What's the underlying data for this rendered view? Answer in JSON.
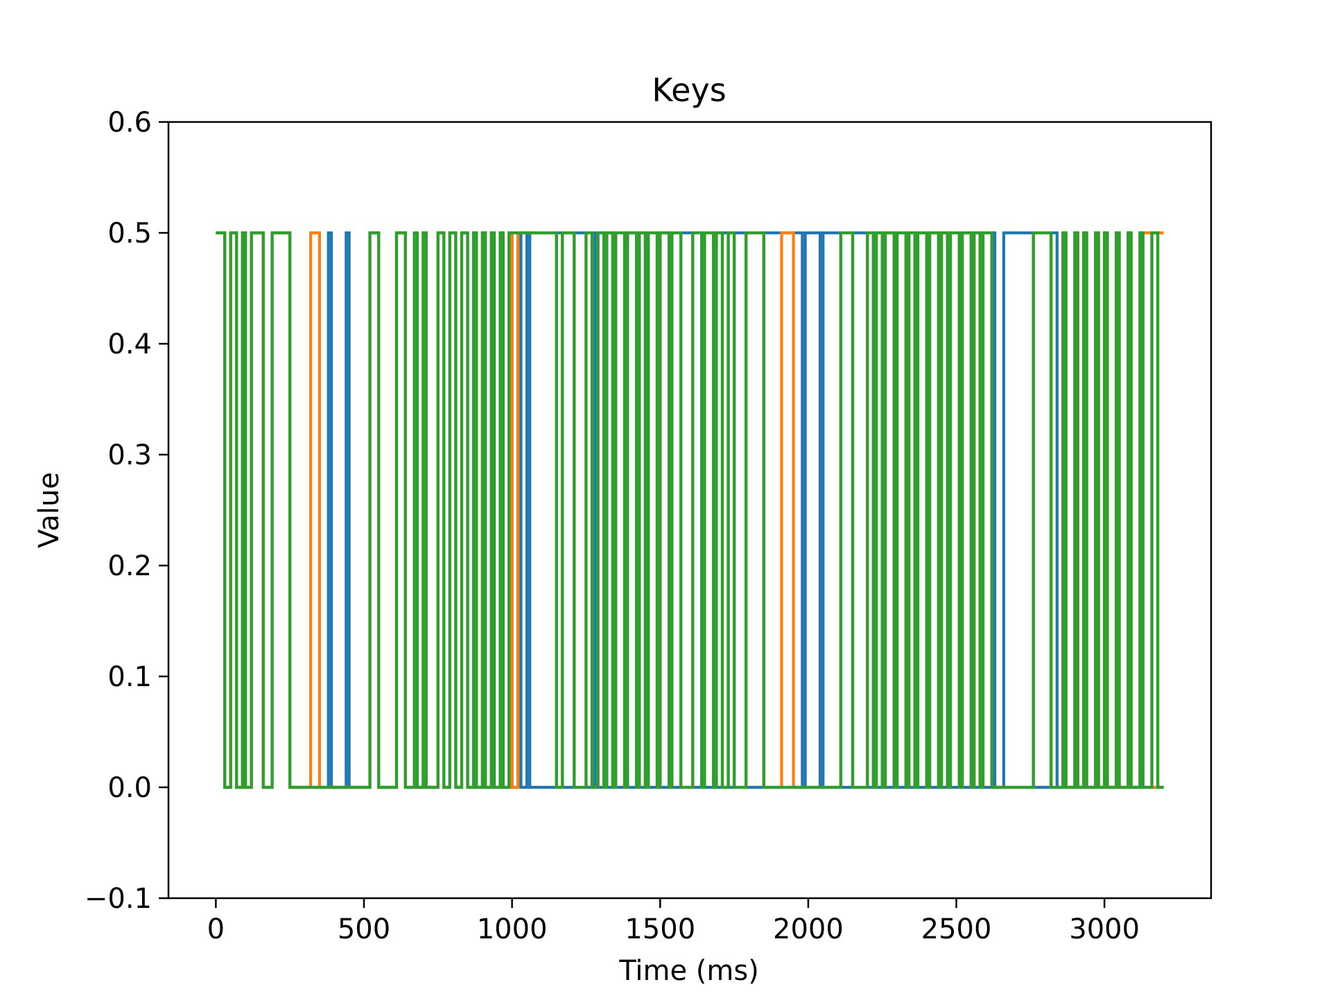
{
  "chart_data": {
    "type": "line",
    "title": "Keys",
    "xlabel": "Time (ms)",
    "ylabel": "Value",
    "xlim": [
      -160,
      3360
    ],
    "ylim": [
      -0.1,
      0.6
    ],
    "xticks": [
      0,
      500,
      1000,
      1500,
      2000,
      2500,
      3000
    ],
    "yticks": [
      -0.1,
      0.0,
      0.1,
      0.2,
      0.3,
      0.4,
      0.5,
      0.6
    ],
    "ytick_labels": [
      "−0.1",
      "0.0",
      "0.1",
      "0.2",
      "0.3",
      "0.4",
      "0.5",
      "0.6"
    ],
    "grid": false,
    "legend": "none",
    "series": [
      {
        "color": "#1f77b4",
        "step": "post",
        "high": 0.5,
        "low": 0.0,
        "x_start": 0,
        "x_end": 3200,
        "high_start": true,
        "transitions": [
          30,
          50,
          70,
          90,
          100,
          120,
          160,
          190,
          250,
          380,
          390,
          440,
          450,
          520,
          550,
          610,
          640,
          700,
          710,
          750,
          770,
          790,
          810,
          830,
          850,
          870,
          880,
          900,
          910,
          930,
          940,
          960,
          970,
          990,
          1000,
          1020,
          1030,
          1050,
          1060,
          1150,
          1170,
          1210,
          1250,
          1280,
          1290,
          1310,
          1320,
          1340,
          1350,
          1380,
          1390,
          1420,
          1430,
          1450,
          1460,
          1490,
          1500,
          1530,
          1540,
          1570,
          1610,
          1640,
          1650,
          1680,
          1690,
          1710,
          1730,
          1750,
          1790,
          1850,
          1980,
          1990,
          2040,
          2050,
          2110,
          2150,
          2200,
          2220,
          2230,
          2250,
          2260,
          2290,
          2300,
          2330,
          2340,
          2360,
          2370,
          2400,
          2410,
          2440,
          2450,
          2470,
          2480,
          2510,
          2520,
          2550,
          2560,
          2580,
          2590,
          2620,
          2630,
          2660,
          2760,
          2820,
          2840,
          2860,
          2870,
          2900,
          2910,
          2930,
          2940,
          2970,
          2980,
          3000,
          3010,
          3040,
          3050,
          3080,
          3090,
          3120,
          3130,
          3160,
          3180
        ]
      },
      {
        "color": "#ff7f0e",
        "step": "post",
        "high": 0.5,
        "low": 0.0,
        "x_start": 0,
        "x_end": 3200,
        "high_start": true,
        "transitions": [
          30,
          50,
          70,
          90,
          100,
          120,
          160,
          190,
          250,
          320,
          350,
          520,
          550,
          610,
          640,
          700,
          710,
          750,
          770,
          790,
          810,
          830,
          850,
          870,
          880,
          900,
          910,
          930,
          940,
          960,
          970,
          990,
          1000,
          1020,
          1150,
          1170,
          1210,
          1250,
          1270,
          1290,
          1310,
          1320,
          1340,
          1350,
          1380,
          1390,
          1420,
          1430,
          1450,
          1460,
          1490,
          1500,
          1530,
          1540,
          1570,
          1610,
          1640,
          1650,
          1680,
          1690,
          1710,
          1730,
          1750,
          1790,
          1850,
          1910,
          1950,
          2110,
          2150,
          2200,
          2220,
          2230,
          2250,
          2260,
          2290,
          2300,
          2330,
          2340,
          2360,
          2370,
          2400,
          2410,
          2440,
          2450,
          2470,
          2480,
          2510,
          2520,
          2550,
          2560,
          2580,
          2590,
          2620,
          2760,
          2820,
          2860,
          2870,
          2900,
          2910,
          2930,
          2940,
          2970,
          2980,
          3000,
          3010,
          3040,
          3050,
          3080,
          3090,
          3120,
          3160,
          3180
        ]
      },
      {
        "color": "#2ca02c",
        "step": "post",
        "high": 0.5,
        "low": 0.0,
        "x_start": 0,
        "x_end": 3200,
        "high_start": true,
        "transitions": [
          30,
          50,
          70,
          90,
          100,
          120,
          160,
          190,
          250,
          520,
          550,
          610,
          640,
          670,
          680,
          700,
          710,
          750,
          770,
          790,
          810,
          830,
          850,
          870,
          880,
          900,
          910,
          930,
          940,
          960,
          970,
          990,
          1150,
          1170,
          1210,
          1250,
          1270,
          1290,
          1310,
          1320,
          1340,
          1350,
          1380,
          1390,
          1420,
          1430,
          1450,
          1460,
          1490,
          1500,
          1530,
          1540,
          1570,
          1610,
          1640,
          1650,
          1680,
          1690,
          1710,
          1730,
          1750,
          1790,
          1850,
          2110,
          2150,
          2200,
          2220,
          2230,
          2250,
          2260,
          2290,
          2300,
          2330,
          2340,
          2360,
          2370,
          2400,
          2410,
          2440,
          2450,
          2470,
          2480,
          2510,
          2520,
          2550,
          2560,
          2580,
          2590,
          2620,
          2760,
          2820,
          2860,
          2870,
          2900,
          2910,
          2930,
          2940,
          2970,
          2980,
          3000,
          3010,
          3040,
          3050,
          3080,
          3090,
          3120,
          3130,
          3160,
          3180
        ]
      }
    ]
  }
}
